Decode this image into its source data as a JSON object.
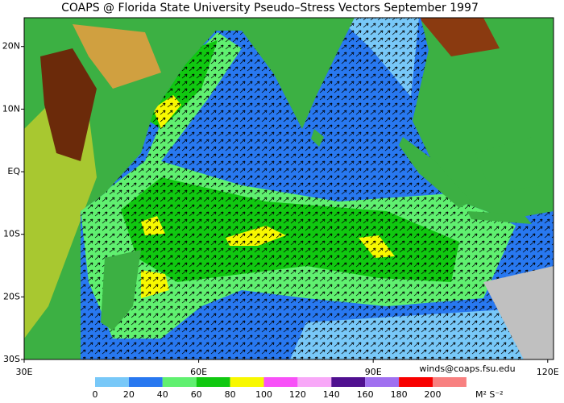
{
  "title": "COAPS @ Florida State University Pseudo–Stress Vectors  September 1997",
  "map": {
    "xlim": [
      30,
      121
    ],
    "ylim": [
      -30,
      24.6
    ],
    "xticks": [
      {
        "value": 30,
        "label": "30E"
      },
      {
        "value": 60,
        "label": "60E"
      },
      {
        "value": 90,
        "label": "90E"
      },
      {
        "value": 120,
        "label": "120E"
      }
    ],
    "yticks": [
      {
        "value": 20,
        "label": "20N"
      },
      {
        "value": 10,
        "label": "10N"
      },
      {
        "value": 0,
        "label": "EQ"
      },
      {
        "value": -10,
        "label": "10S"
      },
      {
        "value": -20,
        "label": "20S"
      },
      {
        "value": -30,
        "label": "30S"
      }
    ]
  },
  "credit": "winds@coaps.fsu.edu",
  "colorbar": {
    "ticks": [
      0,
      20,
      40,
      60,
      80,
      100,
      120,
      140,
      160,
      180,
      200
    ],
    "colors": [
      "#78c8f8",
      "#2878f0",
      "#60f070",
      "#10c810",
      "#f8f800",
      "#f850f8",
      "#f8a8f8",
      "#501090",
      "#a070f0",
      "#f80000",
      "#f88080"
    ],
    "unit": "M² S⁻²"
  }
}
